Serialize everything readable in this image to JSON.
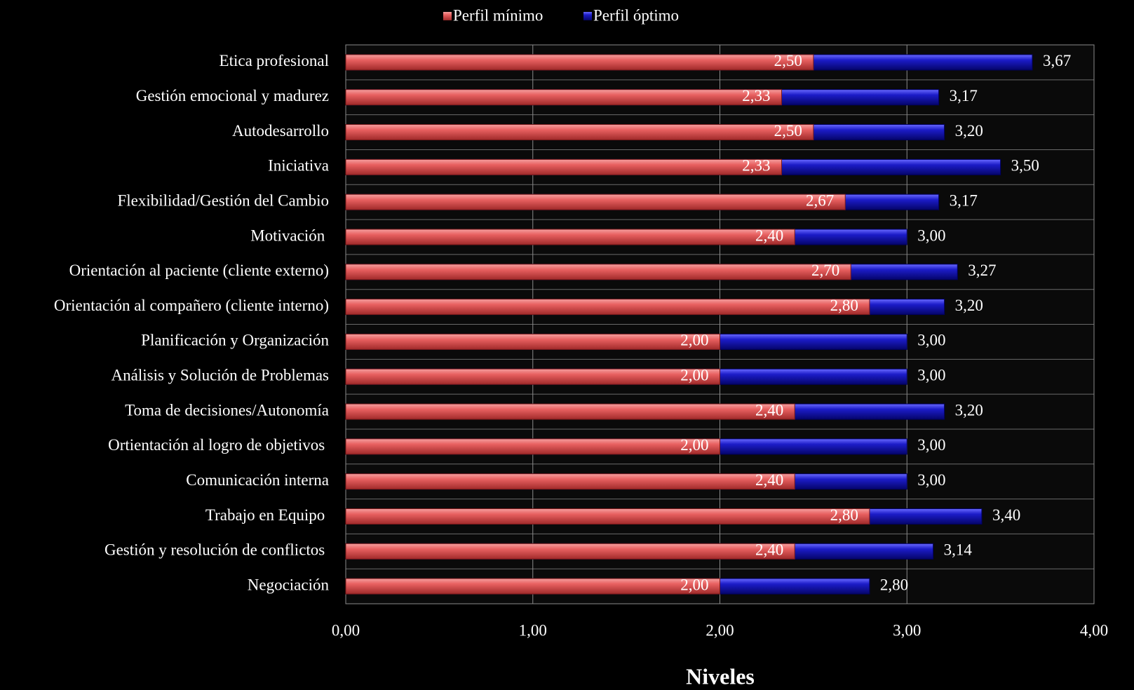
{
  "chart_data": {
    "type": "bar",
    "orientation": "horizontal",
    "x_label": "Niveles",
    "categories": [
      "Etica profesional",
      "Gestión emocional y madurez",
      "Autodesarrollo",
      "Iniciativa",
      "Flexibilidad/Gestión del Cambio",
      "Motivación ",
      "Orientación al paciente (cliente externo)",
      "Orientación al compañero (cliente interno)",
      "Planificación y Organización",
      "Análisis y Solución de Problemas",
      "Toma de decisiones/Autonomía",
      "Ortientación al logro de objetivos ",
      "Comunicación interna",
      "Trabajo en Equipo ",
      "Gestión y resolución de conflictos ",
      "Negociación"
    ],
    "series": [
      {
        "name": "Perfil mínimo",
        "color": "#e05a5a",
        "values": [
          2.5,
          2.33,
          2.5,
          2.33,
          2.67,
          2.4,
          2.7,
          2.8,
          2.0,
          2.0,
          2.4,
          2.0,
          2.4,
          2.8,
          2.4,
          2.0
        ],
        "value_labels": [
          "2,50",
          "2,33",
          "2,50",
          "2,33",
          "2,67",
          "2,40",
          "2,70",
          "2,80",
          "2,00",
          "2,00",
          "2,40",
          "2,00",
          "2,40",
          "2,80",
          "2,40",
          "2,00"
        ]
      },
      {
        "name": "Perfil óptimo",
        "color": "#1c1cc8",
        "values": [
          3.67,
          3.17,
          3.2,
          3.5,
          3.17,
          3.0,
          3.27,
          3.2,
          3.0,
          3.0,
          3.2,
          3.0,
          3.0,
          3.4,
          3.14,
          2.8
        ],
        "value_labels": [
          "3,67",
          "3,17",
          "3,20",
          "3,50",
          "3,17",
          "3,00",
          "3,27",
          "3,20",
          "3,00",
          "3,00",
          "3,20",
          "3,00",
          "3,00",
          "3,40",
          "3,14",
          "2,80"
        ]
      }
    ],
    "xlim": [
      0,
      4
    ],
    "xticks": [
      {
        "value": 0,
        "label": "0,00"
      },
      {
        "value": 1,
        "label": "1,00"
      },
      {
        "value": 2,
        "label": "2,00"
      },
      {
        "value": 3,
        "label": "3,00"
      },
      {
        "value": 4,
        "label": "4,00"
      }
    ],
    "grid": true,
    "legend": "top"
  }
}
